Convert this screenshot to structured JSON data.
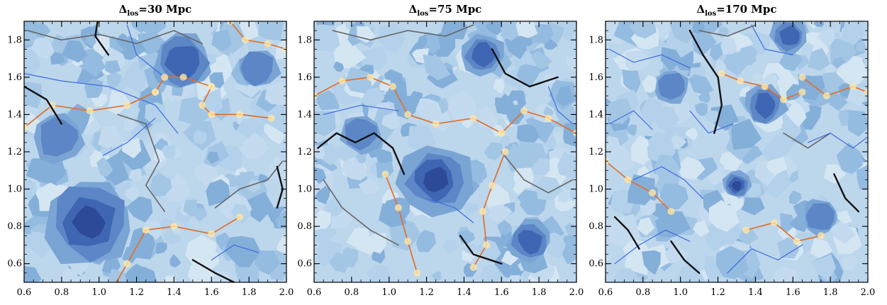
{
  "chart_data": [
    {
      "type": "heatmap",
      "title": "Δlos=30 Mpc",
      "title_main": "Δ",
      "title_sub": "los",
      "title_rest": "=30 Mpc",
      "xlim": [
        0.6,
        2.0
      ],
      "ylim": [
        0.5,
        1.9
      ],
      "xticks": [
        0.6,
        0.8,
        1.0,
        1.2,
        1.4,
        1.6,
        1.8,
        2.0
      ],
      "yticks": [
        0.6,
        0.8,
        1.0,
        1.2,
        1.4,
        1.6,
        1.8
      ],
      "voids": [
        [
          0.95,
          0.82,
          0.26,
          3
        ],
        [
          1.45,
          1.68,
          0.17,
          2
        ],
        [
          0.78,
          1.28,
          0.14,
          1
        ],
        [
          1.85,
          1.65,
          0.12,
          1
        ]
      ],
      "layers": {
        "blue": [
          [
            [
              0.6,
              1.62
            ],
            [
              0.8,
              1.58
            ],
            [
              1.05,
              1.55
            ],
            [
              1.3,
              1.45
            ],
            [
              1.42,
              1.3
            ]
          ],
          [
            [
              1.02,
              1.18
            ],
            [
              1.15,
              1.25
            ],
            [
              1.3,
              1.38
            ]
          ],
          [
            [
              1.6,
              0.62
            ],
            [
              1.72,
              0.7
            ],
            [
              1.85,
              0.66
            ]
          ],
          [
            [
              1.15,
              1.88
            ],
            [
              1.2,
              1.72
            ],
            [
              1.35,
              1.6
            ]
          ]
        ],
        "grey": [
          [
            [
              0.62,
              1.85
            ],
            [
              0.8,
              1.8
            ],
            [
              1.0,
              1.83
            ],
            [
              1.2,
              1.78
            ],
            [
              1.4,
              1.85
            ],
            [
              1.55,
              1.78
            ]
          ],
          [
            [
              1.1,
              1.4
            ],
            [
              1.25,
              1.35
            ],
            [
              1.32,
              1.15
            ],
            [
              1.25,
              1.02
            ],
            [
              1.35,
              0.88
            ]
          ],
          [
            [
              1.62,
              0.9
            ],
            [
              1.75,
              1.0
            ],
            [
              1.9,
              1.05
            ],
            [
              1.98,
              1.15
            ]
          ]
        ],
        "orange": [
          [
            [
              0.6,
              1.33
            ],
            [
              0.75,
              1.45
            ],
            [
              0.95,
              1.42
            ],
            [
              1.15,
              1.45
            ],
            [
              1.3,
              1.52
            ]
          ],
          [
            [
              1.3,
              1.52
            ],
            [
              1.35,
              1.6
            ],
            [
              1.45,
              1.6
            ],
            [
              1.6,
              1.55
            ]
          ],
          [
            [
              1.6,
              1.55
            ],
            [
              1.55,
              1.45
            ],
            [
              1.6,
              1.4
            ],
            [
              1.75,
              1.4
            ],
            [
              1.92,
              1.38
            ]
          ],
          [
            [
              1.08,
              0.48
            ],
            [
              1.15,
              0.6
            ],
            [
              1.25,
              0.78
            ],
            [
              1.4,
              0.8
            ],
            [
              1.6,
              0.76
            ],
            [
              1.75,
              0.85
            ]
          ],
          [
            [
              1.7,
              1.9
            ],
            [
              1.78,
              1.8
            ],
            [
              1.9,
              1.78
            ],
            [
              2.0,
              1.75
            ]
          ]
        ],
        "black": [
          [
            [
              0.6,
              1.55
            ],
            [
              0.72,
              1.48
            ],
            [
              0.8,
              1.35
            ]
          ],
          [
            [
              1.5,
              0.62
            ],
            [
              1.62,
              0.55
            ],
            [
              1.72,
              0.5
            ]
          ],
          [
            [
              1.0,
              1.95
            ],
            [
              0.98,
              1.82
            ],
            [
              1.05,
              1.72
            ]
          ],
          [
            [
              1.95,
              1.12
            ],
            [
              1.98,
              1.0
            ],
            [
              1.95,
              0.9
            ]
          ]
        ]
      }
    },
    {
      "type": "heatmap",
      "title": "Δlos=75 Mpc",
      "title_main": "Δ",
      "title_sub": "los",
      "title_rest": "=75 Mpc",
      "xlim": [
        0.6,
        2.0
      ],
      "ylim": [
        0.5,
        1.9
      ],
      "xticks": [
        0.6,
        0.8,
        1.0,
        1.2,
        1.4,
        1.6,
        1.8,
        2.0
      ],
      "yticks": [
        0.6,
        0.8,
        1.0,
        1.2,
        1.4,
        1.6,
        1.8
      ],
      "voids": [
        [
          1.25,
          1.05,
          0.2,
          3
        ],
        [
          1.5,
          1.72,
          0.12,
          2
        ],
        [
          0.85,
          1.3,
          0.12,
          1
        ],
        [
          1.75,
          0.72,
          0.12,
          2
        ]
      ],
      "layers": {
        "blue": [
          [
            [
              0.65,
              1.4
            ],
            [
              0.85,
              1.45
            ],
            [
              1.05,
              1.42
            ]
          ],
          [
            [
              1.2,
              0.95
            ],
            [
              1.35,
              0.9
            ],
            [
              1.45,
              0.82
            ]
          ],
          [
            [
              1.85,
              1.55
            ],
            [
              1.9,
              1.42
            ],
            [
              1.98,
              1.35
            ]
          ]
        ],
        "grey": [
          [
            [
              0.7,
              1.85
            ],
            [
              0.9,
              1.8
            ],
            [
              1.1,
              1.85
            ],
            [
              1.3,
              1.82
            ],
            [
              1.45,
              1.88
            ]
          ],
          [
            [
              0.65,
              1.05
            ],
            [
              0.75,
              0.9
            ],
            [
              0.9,
              0.78
            ],
            [
              1.05,
              0.7
            ]
          ],
          [
            [
              1.6,
              1.2
            ],
            [
              1.72,
              1.05
            ],
            [
              1.85,
              0.98
            ],
            [
              1.98,
              1.05
            ]
          ]
        ],
        "orange": [
          [
            [
              0.6,
              1.5
            ],
            [
              0.75,
              1.58
            ],
            [
              0.9,
              1.6
            ],
            [
              1.02,
              1.55
            ],
            [
              1.1,
              1.4
            ],
            [
              1.25,
              1.35
            ],
            [
              1.45,
              1.38
            ],
            [
              1.6,
              1.3
            ]
          ],
          [
            [
              1.6,
              1.3
            ],
            [
              1.72,
              1.42
            ],
            [
              1.85,
              1.38
            ],
            [
              2.0,
              1.3
            ]
          ],
          [
            [
              0.98,
              1.08
            ],
            [
              1.05,
              0.9
            ],
            [
              1.1,
              0.72
            ],
            [
              1.15,
              0.55
            ]
          ],
          [
            [
              1.45,
              0.58
            ],
            [
              1.52,
              0.7
            ],
            [
              1.5,
              0.88
            ],
            [
              1.55,
              1.02
            ],
            [
              1.62,
              1.2
            ]
          ]
        ],
        "black": [
          [
            [
              0.62,
              1.22
            ],
            [
              0.72,
              1.3
            ],
            [
              0.82,
              1.25
            ],
            [
              0.92,
              1.3
            ],
            [
              1.02,
              1.22
            ],
            [
              1.08,
              1.08
            ]
          ],
          [
            [
              1.55,
              1.75
            ],
            [
              1.62,
              1.62
            ],
            [
              1.75,
              1.55
            ],
            [
              1.9,
              1.6
            ]
          ],
          [
            [
              1.38,
              0.75
            ],
            [
              1.45,
              0.65
            ],
            [
              1.6,
              0.6
            ]
          ]
        ]
      }
    },
    {
      "type": "heatmap",
      "title": "Δlos=170 Mpc",
      "title_main": "Δ",
      "title_sub": "los",
      "title_rest": "=170 Mpc",
      "xlim": [
        0.6,
        2.0
      ],
      "ylim": [
        0.5,
        1.9
      ],
      "xticks": [
        0.6,
        0.8,
        1.0,
        1.2,
        1.4,
        1.6,
        1.8,
        2.0
      ],
      "yticks": [
        0.6,
        0.8,
        1.0,
        1.2,
        1.4,
        1.6,
        1.8
      ],
      "voids": [
        [
          1.3,
          1.02,
          0.08,
          3
        ],
        [
          1.45,
          1.45,
          0.12,
          2
        ],
        [
          1.58,
          1.82,
          0.1,
          2
        ],
        [
          0.95,
          1.55,
          0.1,
          1
        ],
        [
          1.75,
          0.85,
          0.1,
          1
        ]
      ],
      "layers": {
        "blue": [
          [
            [
              0.62,
              1.75
            ],
            [
              0.75,
              1.68
            ],
            [
              0.9,
              1.72
            ],
            [
              1.05,
              1.65
            ]
          ],
          [
            [
              0.65,
              0.6
            ],
            [
              0.78,
              0.7
            ],
            [
              0.92,
              0.78
            ],
            [
              1.05,
              0.72
            ]
          ],
          [
            [
              0.75,
              1.05
            ],
            [
              0.9,
              1.12
            ],
            [
              1.02,
              1.05
            ],
            [
              1.12,
              0.95
            ]
          ],
          [
            [
              1.25,
              0.55
            ],
            [
              1.38,
              0.68
            ],
            [
              1.52,
              0.62
            ],
            [
              1.65,
              0.7
            ]
          ],
          [
            [
              1.68,
              1.25
            ],
            [
              1.8,
              1.3
            ],
            [
              1.92,
              1.22
            ],
            [
              2.0,
              1.28
            ]
          ],
          [
            [
              1.05,
              1.42
            ],
            [
              1.15,
              1.3
            ],
            [
              1.28,
              1.35
            ]
          ],
          [
            [
              1.38,
              1.88
            ],
            [
              1.45,
              1.75
            ],
            [
              1.6,
              1.72
            ]
          ],
          [
            [
              0.62,
              1.35
            ],
            [
              0.75,
              1.42
            ],
            [
              0.85,
              1.32
            ]
          ]
        ],
        "grey": [
          [
            [
              1.1,
              1.85
            ],
            [
              1.25,
              1.82
            ],
            [
              1.4,
              1.88
            ]
          ],
          [
            [
              1.55,
              1.3
            ],
            [
              1.68,
              1.22
            ],
            [
              1.8,
              1.3
            ]
          ]
        ],
        "orange": [
          [
            [
              0.6,
              1.15
            ],
            [
              0.72,
              1.05
            ],
            [
              0.85,
              0.98
            ],
            [
              0.95,
              0.88
            ]
          ],
          [
            [
              1.22,
              1.62
            ],
            [
              1.32,
              1.58
            ],
            [
              1.45,
              1.55
            ],
            [
              1.55,
              1.48
            ],
            [
              1.65,
              1.52
            ]
          ],
          [
            [
              1.65,
              1.6
            ],
            [
              1.78,
              1.5
            ],
            [
              1.92,
              1.55
            ],
            [
              2.0,
              1.52
            ]
          ],
          [
            [
              1.35,
              0.78
            ],
            [
              1.5,
              0.82
            ],
            [
              1.62,
              0.72
            ],
            [
              1.75,
              0.75
            ]
          ]
        ],
        "black": [
          [
            [
              1.05,
              1.85
            ],
            [
              1.12,
              1.72
            ],
            [
              1.2,
              1.6
            ],
            [
              1.22,
              1.45
            ],
            [
              1.18,
              1.3
            ]
          ],
          [
            [
              0.95,
              0.72
            ],
            [
              1.02,
              0.62
            ],
            [
              1.1,
              0.55
            ]
          ],
          [
            [
              1.82,
              1.08
            ],
            [
              1.88,
              0.95
            ],
            [
              1.95,
              0.88
            ]
          ],
          [
            [
              0.65,
              0.85
            ],
            [
              0.72,
              0.78
            ],
            [
              0.78,
              0.68
            ]
          ]
        ]
      }
    }
  ]
}
